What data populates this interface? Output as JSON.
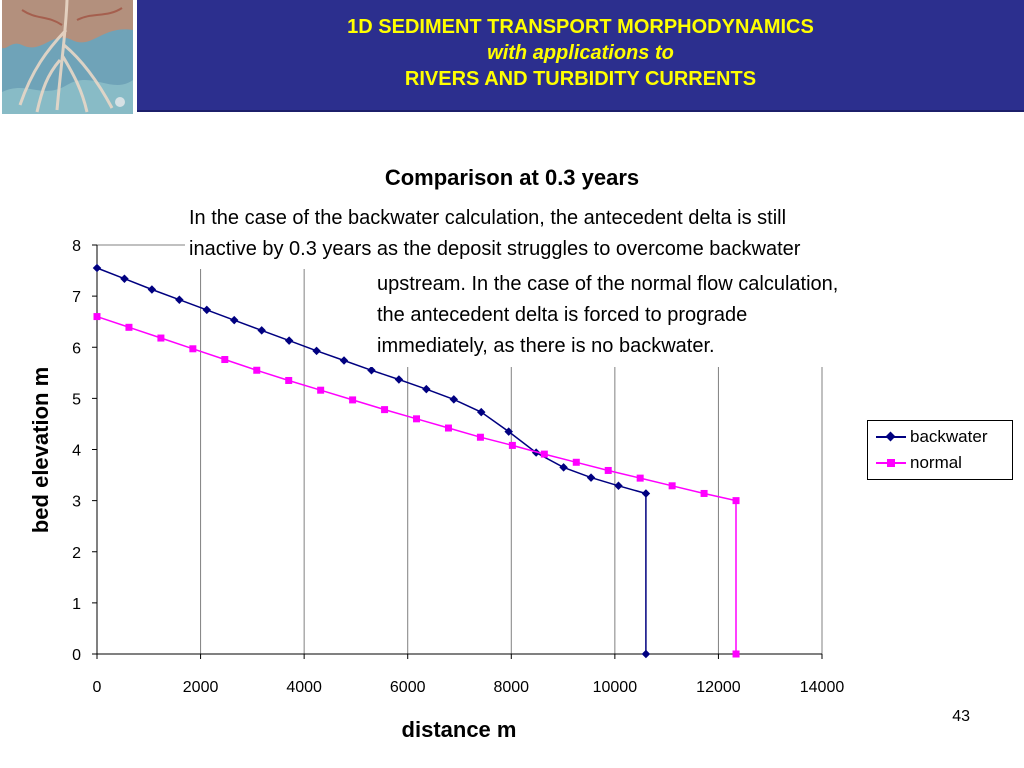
{
  "header": {
    "line1": "1D SEDIMENT TRANSPORT MORPHODYNAMICS",
    "line2": "with applications to",
    "line3": "RIVERS AND TURBIDITY CURRENTS",
    "band_color": "#2c2f8e",
    "text_color": "#ffff00",
    "logo_icon": "river-delta-image"
  },
  "annotation": {
    "line1": "In the case of the backwater calculation, the antecedent delta is still",
    "line2": "inactive by 0.3 years as the deposit struggles to overcome backwater",
    "line3": "upstream.  In the case of the normal flow calculation,",
    "line4": "the antecedent delta is forced to prograde",
    "line5": "immediately, as there is no backwater."
  },
  "slide_number": "43",
  "chart_data": {
    "type": "line",
    "title": "Comparison at 0.3 years",
    "xlabel": "distance m",
    "ylabel": "bed elevation m",
    "xlim": [
      0,
      14000
    ],
    "ylim": [
      0,
      8
    ],
    "xticks": [
      "0",
      "2000",
      "4000",
      "6000",
      "8000",
      "10000",
      "12000",
      "14000"
    ],
    "yticks": [
      "0",
      "1",
      "2",
      "3",
      "4",
      "5",
      "6",
      "7",
      "8"
    ],
    "grid": "vertical",
    "legend": "right",
    "series": [
      {
        "name": "backwater",
        "color": "#000080",
        "marker": "diamond",
        "x": [
          0,
          530,
          1060,
          1590,
          2120,
          2650,
          3180,
          3710,
          4240,
          4770,
          5300,
          5830,
          6360,
          6890,
          7420,
          7950,
          8480,
          9010,
          9540,
          10070,
          10600,
          10600
        ],
        "y": [
          7.55,
          7.34,
          7.13,
          6.93,
          6.73,
          6.53,
          6.33,
          6.13,
          5.93,
          5.74,
          5.55,
          5.37,
          5.18,
          4.98,
          4.73,
          4.35,
          3.94,
          3.65,
          3.45,
          3.29,
          3.14,
          0
        ]
      },
      {
        "name": "normal",
        "color": "#ff00ff",
        "marker": "square",
        "x": [
          0,
          617,
          1234,
          1851,
          2468,
          3085,
          3702,
          4319,
          4936,
          5553,
          6170,
          6787,
          7404,
          8021,
          8638,
          9255,
          9872,
          10489,
          11106,
          11723,
          12340,
          12340
        ],
        "y": [
          6.6,
          6.39,
          6.18,
          5.97,
          5.76,
          5.55,
          5.35,
          5.16,
          4.97,
          4.78,
          4.6,
          4.42,
          4.24,
          4.08,
          3.91,
          3.75,
          3.59,
          3.44,
          3.29,
          3.14,
          3.0,
          0
        ]
      }
    ]
  }
}
